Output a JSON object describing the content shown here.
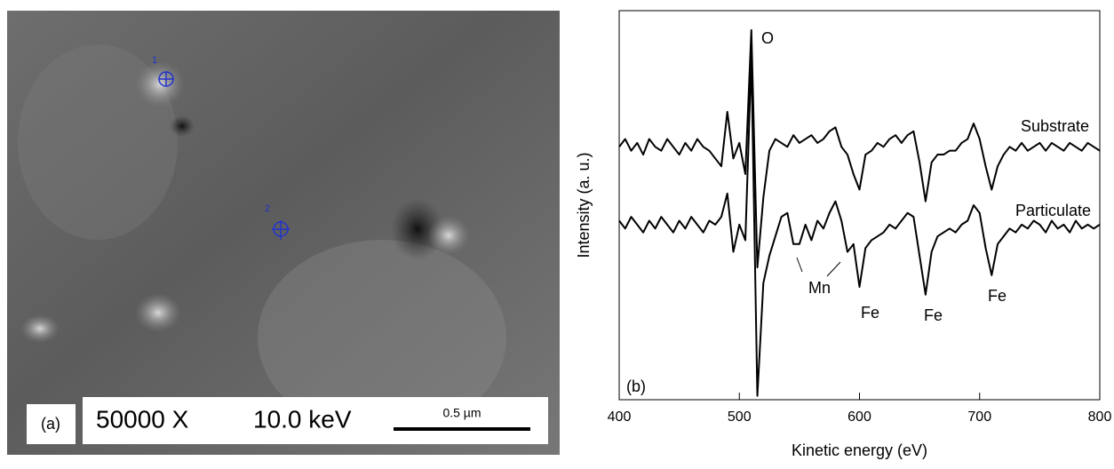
{
  "image_panel": {
    "label": "(a)",
    "magnification": "50000 X",
    "voltage": "10.0 keV",
    "scale_bar": "0.5 µm",
    "points": [
      "1",
      "2"
    ]
  },
  "chart_data": {
    "type": "line",
    "panel_label": "(b)",
    "xlabel": "Kinetic energy (eV)",
    "ylabel": "Intensity (a. u.)",
    "x": [
      400,
      405,
      410,
      415,
      420,
      425,
      430,
      435,
      440,
      445,
      450,
      455,
      460,
      465,
      470,
      475,
      480,
      485,
      490,
      495,
      500,
      505,
      510,
      515,
      520,
      525,
      530,
      535,
      540,
      545,
      550,
      555,
      560,
      565,
      570,
      575,
      580,
      585,
      590,
      595,
      600,
      605,
      610,
      615,
      620,
      625,
      630,
      635,
      640,
      645,
      650,
      655,
      660,
      665,
      670,
      675,
      680,
      685,
      690,
      695,
      700,
      705,
      710,
      715,
      720,
      725,
      730,
      735,
      740,
      745,
      750,
      755,
      760,
      765,
      770,
      775,
      780,
      785,
      790,
      795,
      800
    ],
    "series": [
      {
        "name": "Substrate",
        "color": "#000000",
        "values": [
          65,
          67,
          64,
          66,
          63,
          67,
          65,
          64,
          67,
          65,
          63,
          66,
          64,
          67,
          65,
          64,
          62,
          60,
          74,
          62,
          66,
          58,
          95,
          34,
          52,
          64,
          67,
          66,
          65,
          68,
          66,
          67,
          68,
          66,
          67,
          69,
          70,
          65,
          63,
          58,
          54,
          63,
          64,
          66,
          65,
          67,
          68,
          66,
          68,
          69,
          61,
          51,
          61,
          63,
          63,
          64,
          64,
          66,
          67,
          71,
          67,
          60,
          54,
          60,
          63,
          65,
          64,
          66,
          64,
          65,
          66,
          64,
          66,
          65,
          64,
          66,
          65,
          64,
          66,
          65,
          64
        ]
      },
      {
        "name": "Particulate",
        "color": "#000000",
        "values": [
          46,
          44,
          47,
          45,
          43,
          46,
          44,
          47,
          45,
          43,
          46,
          44,
          47,
          45,
          43,
          46,
          45,
          47,
          53,
          38,
          45,
          41,
          88,
          1,
          30,
          37,
          42,
          47,
          48,
          40,
          40,
          45,
          41,
          46,
          44,
          48,
          51,
          46,
          38,
          40,
          29,
          39,
          41,
          42,
          43,
          45,
          44,
          46,
          48,
          47,
          37,
          27,
          38,
          42,
          43,
          44,
          43,
          45,
          46,
          50,
          48,
          39,
          32,
          40,
          42,
          44,
          43,
          45,
          44,
          46,
          45,
          43,
          46,
          44,
          45,
          43,
          46,
          44,
          45,
          44,
          45
        ]
      }
    ],
    "annotations": [
      "O",
      "Mn",
      "Fe",
      "Fe",
      "Fe"
    ],
    "xlim": [
      400,
      800
    ],
    "xticks": [
      400,
      500,
      600,
      700,
      800
    ],
    "ylim": [
      0,
      100
    ]
  }
}
